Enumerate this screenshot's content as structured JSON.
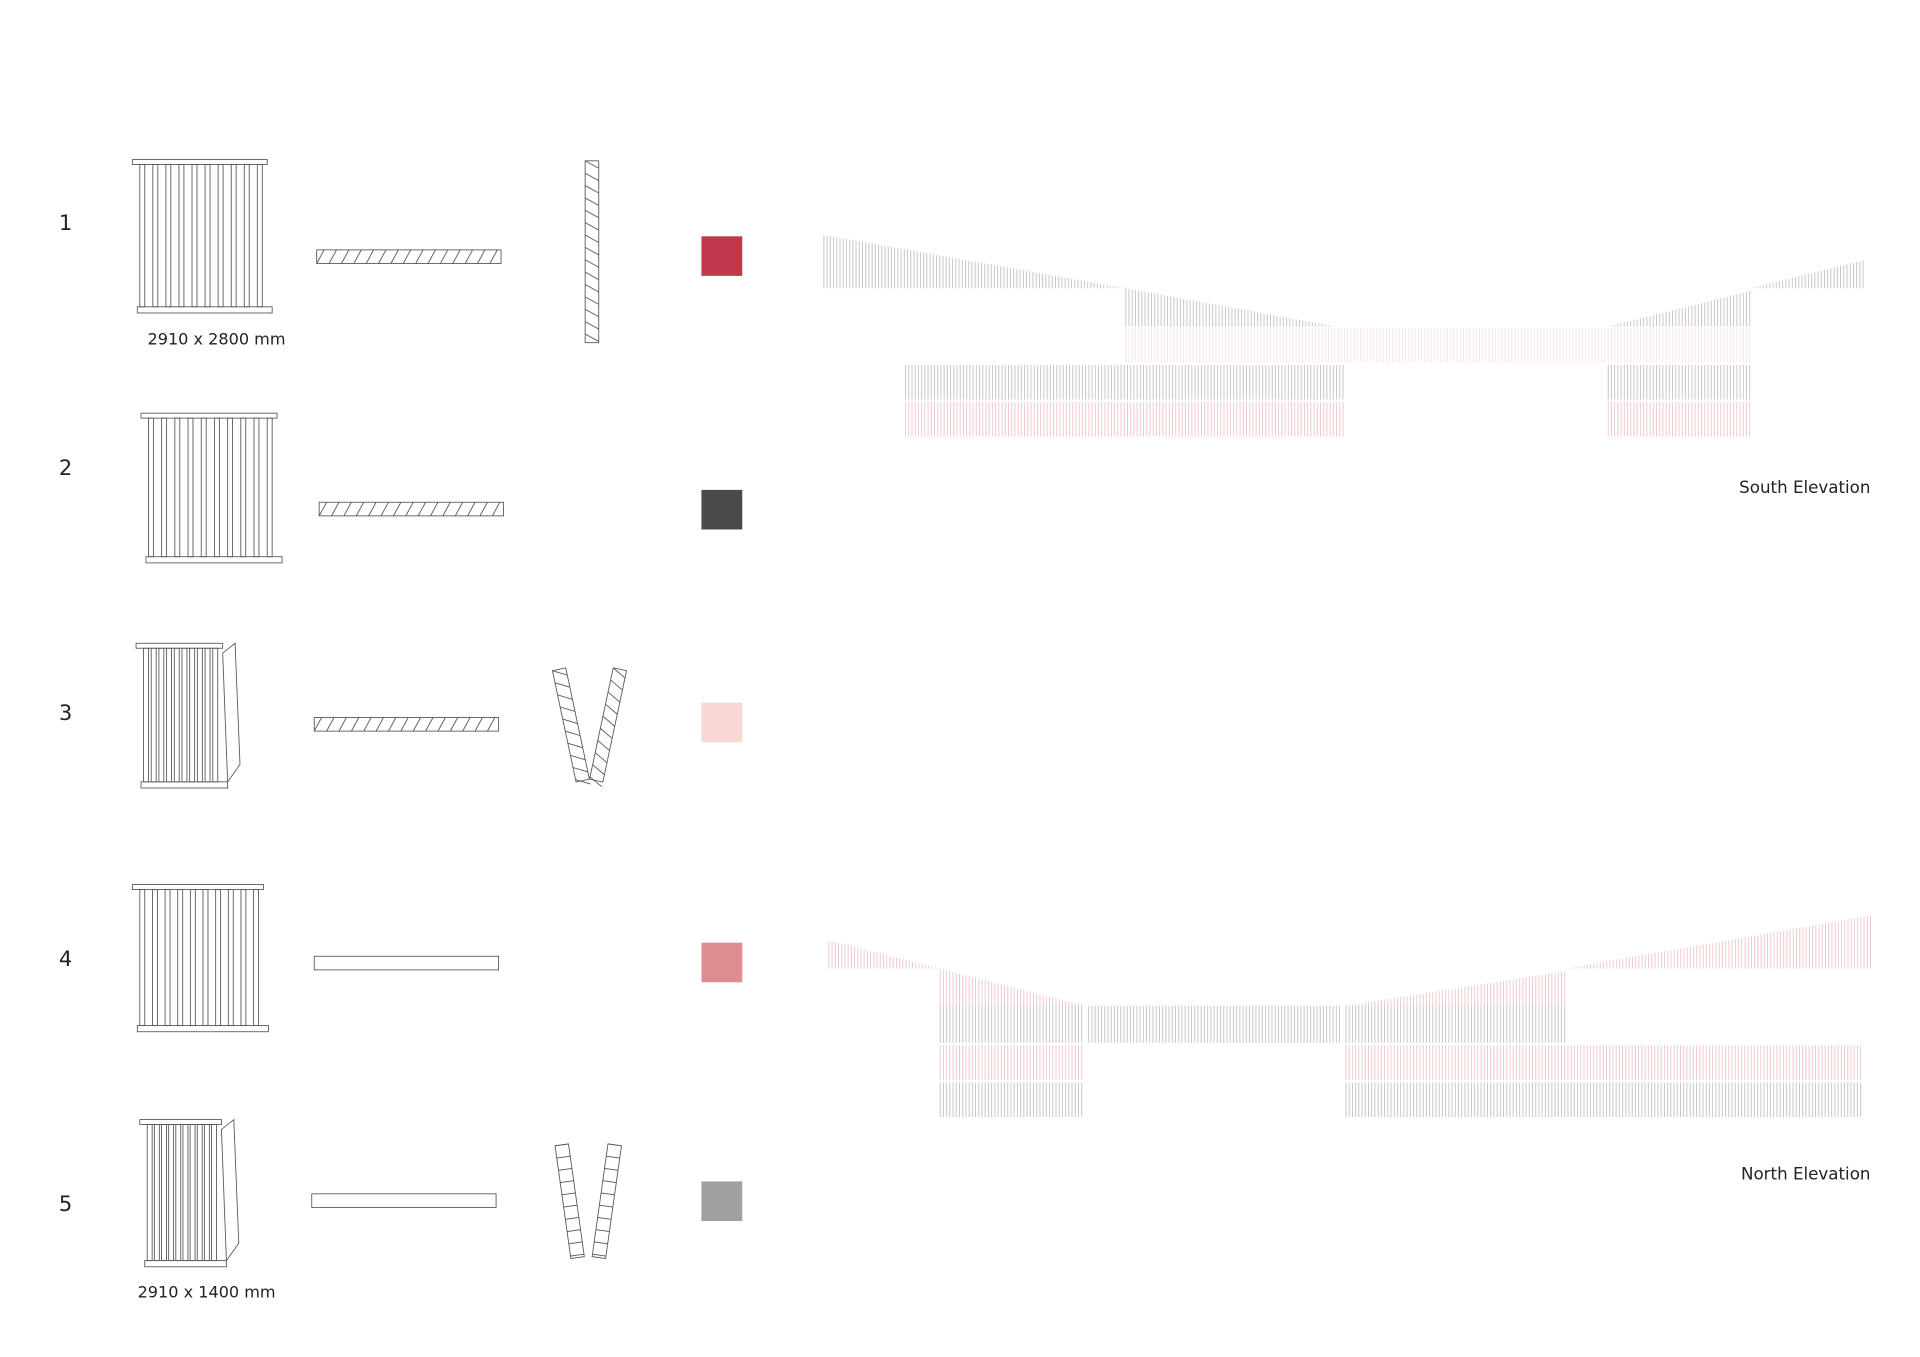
{
  "panels": [
    {
      "number": "1",
      "dimensions": "2910 x 2800 mm"
    },
    {
      "number": "2"
    },
    {
      "number": "3"
    },
    {
      "number": "4"
    },
    {
      "number": "5",
      "dimensions": "2910 x 1400 mm"
    }
  ],
  "elevations": [
    {
      "label": "South Elevation"
    },
    {
      "label": "North Elevation"
    }
  ]
}
